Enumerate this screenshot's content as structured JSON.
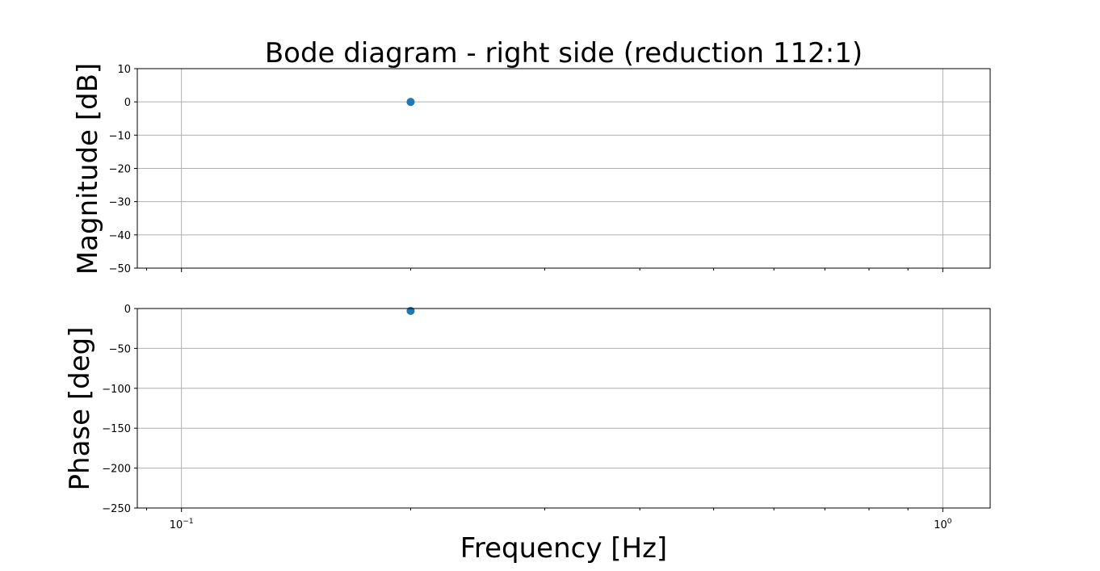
{
  "chart_data": {
    "type": "scatter",
    "title": "Bode diagram - right side (reduction 112:1)",
    "xlabel": "Frequency [Hz]",
    "xscale": "log",
    "xlim": [
      0.0875,
      1.154
    ],
    "x_major_ticks": [
      {
        "value": 0.1,
        "base": "10",
        "exp": "−1"
      },
      {
        "value": 1,
        "base": "10",
        "exp": "0"
      }
    ],
    "x_minor_ticks": [
      0.09,
      0.2,
      0.3,
      0.4,
      0.5,
      0.6,
      0.7,
      0.8,
      0.9
    ],
    "subplots": [
      {
        "name": "magnitude",
        "ylabel": "Magnitude [dB]",
        "ylim": [
          -50,
          10
        ],
        "yticks": [
          {
            "value": 10,
            "label": "10"
          },
          {
            "value": 0,
            "label": "0"
          },
          {
            "value": -10,
            "label": "−10"
          },
          {
            "value": -20,
            "label": "−20"
          },
          {
            "value": -30,
            "label": "−30"
          },
          {
            "value": -40,
            "label": "−40"
          },
          {
            "value": -50,
            "label": "−50"
          }
        ],
        "grid": true,
        "series": [
          {
            "name": "magnitude",
            "color": "#1f77b4",
            "points": [
              {
                "x": 0.2,
                "y": 0
              }
            ]
          }
        ]
      },
      {
        "name": "phase",
        "ylabel": "Phase [deg]",
        "ylim": [
          -250,
          0
        ],
        "yticks": [
          {
            "value": 0,
            "label": "0"
          },
          {
            "value": -50,
            "label": "−50"
          },
          {
            "value": -100,
            "label": "−100"
          },
          {
            "value": -150,
            "label": "−150"
          },
          {
            "value": -200,
            "label": "−200"
          },
          {
            "value": -250,
            "label": "−250"
          }
        ],
        "grid": true,
        "series": [
          {
            "name": "phase",
            "color": "#1f77b4",
            "points": [
              {
                "x": 0.2,
                "y": -3
              }
            ]
          }
        ]
      }
    ]
  }
}
